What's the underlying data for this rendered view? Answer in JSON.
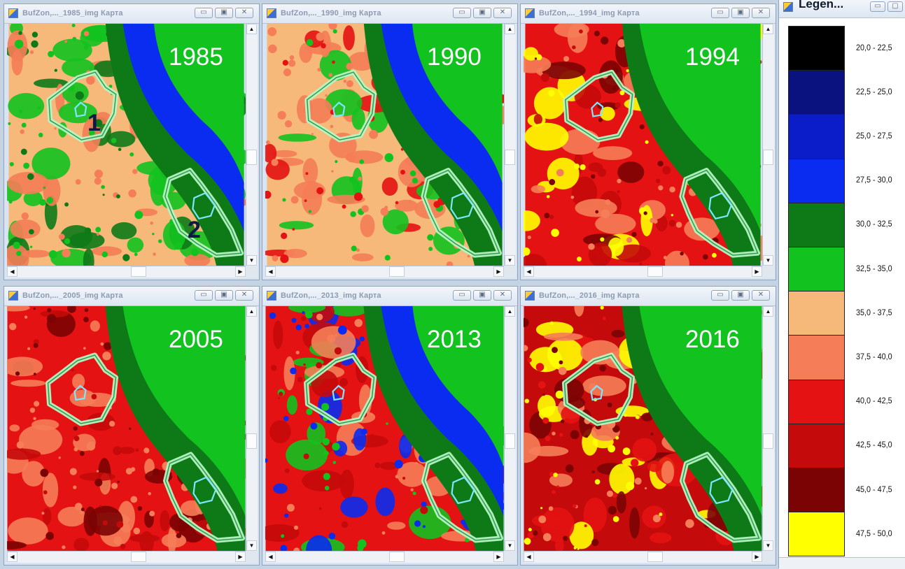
{
  "windows": [
    {
      "id": "w1985",
      "title": "BufZon,..._1985_img Карта",
      "year": "1985",
      "scheme": "1985"
    },
    {
      "id": "w1990",
      "title": "BufZon,..._1990_img Карта",
      "year": "1990",
      "scheme": "1990"
    },
    {
      "id": "w1994",
      "title": "BufZon,..._1994_img Карта",
      "year": "1994",
      "scheme": "1994"
    },
    {
      "id": "w2005",
      "title": "BufZon,..._2005_img Карта",
      "year": "2005",
      "scheme": "2005"
    },
    {
      "id": "w2013",
      "title": "BufZon,..._2013_img Карта",
      "year": "2013",
      "scheme": "2013"
    },
    {
      "id": "w2016",
      "title": "BufZon,..._2016_img Карта",
      "year": "2016",
      "scheme": "2016"
    }
  ],
  "zone_markers": [
    "1",
    "2"
  ],
  "legend": {
    "title": "Legen...",
    "items": [
      {
        "label": "20,0 - 22,5",
        "color": "#000000"
      },
      {
        "label": "22,5 - 25,0",
        "color": "#0a1280"
      },
      {
        "label": "25,0 - 27,5",
        "color": "#0b1cc9"
      },
      {
        "label": "27,5 - 30,0",
        "color": "#0a2cf0"
      },
      {
        "label": "30,0 - 32,5",
        "color": "#0d7a17"
      },
      {
        "label": "32,5 - 35,0",
        "color": "#12c21f"
      },
      {
        "label": "35,0 - 37,5",
        "color": "#f6b97a"
      },
      {
        "label": "37,5 - 40,0",
        "color": "#f57d57"
      },
      {
        "label": "40,0 - 42,5",
        "color": "#e41212"
      },
      {
        "label": "42,5 - 45,0",
        "color": "#c40a0a"
      },
      {
        "label": "45,0 - 47,5",
        "color": "#7c0303"
      },
      {
        "label": "47,5 - 50,0",
        "color": "#ffff00"
      }
    ]
  },
  "window_controls": [
    "minimize",
    "maximize",
    "close"
  ]
}
